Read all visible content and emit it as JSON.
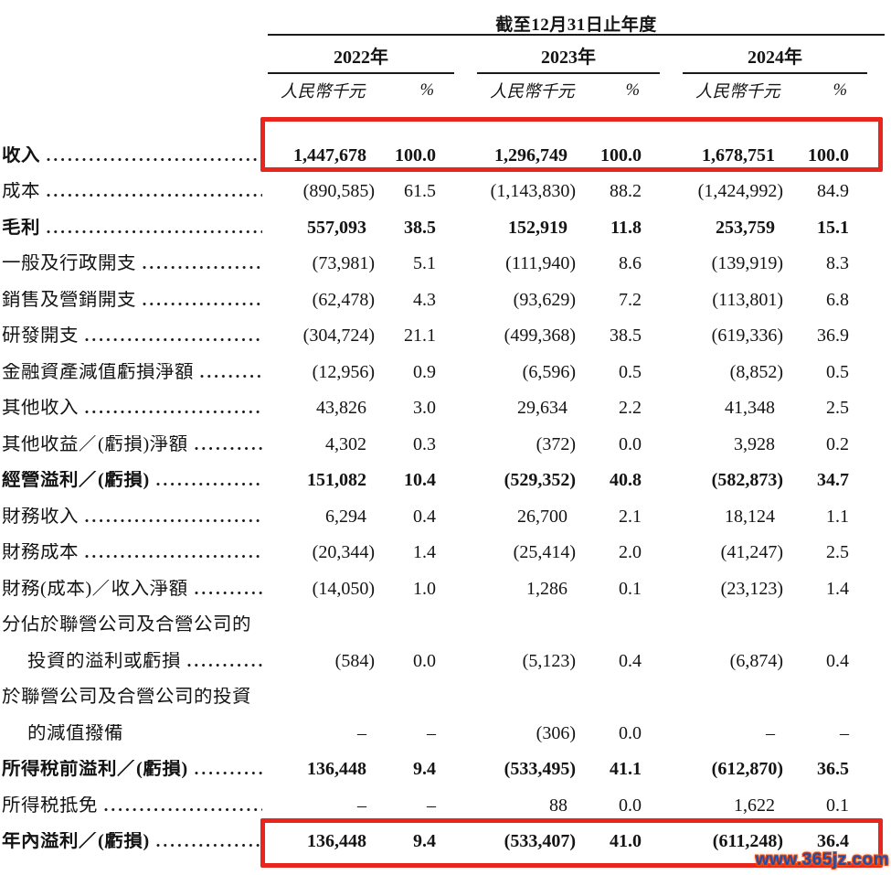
{
  "header": {
    "period_title": "截至12月31日止年度",
    "years": [
      "2022年",
      "2023年",
      "2024年"
    ],
    "unit_label": "人民幣千元",
    "percent_label": "%"
  },
  "rows": [
    {
      "label": "收入",
      "bold": true,
      "leader": true,
      "highlight": true,
      "values": [
        "1,447,678",
        "100.0",
        "1,296,749",
        "100.0",
        "1,678,751",
        "100.0"
      ]
    },
    {
      "label": "成本",
      "bold": false,
      "leader": true,
      "values": [
        "(890,585)",
        "61.5",
        "(1,143,830)",
        "88.2",
        "(1,424,992)",
        "84.9"
      ]
    },
    {
      "label": "毛利",
      "bold": true,
      "leader": true,
      "values": [
        "557,093",
        "38.5",
        "152,919",
        "11.8",
        "253,759",
        "15.1"
      ]
    },
    {
      "label": "一般及行政開支",
      "bold": false,
      "leader": true,
      "values": [
        "(73,981)",
        "5.1",
        "(111,940)",
        "8.6",
        "(139,919)",
        "8.3"
      ]
    },
    {
      "label": "銷售及營銷開支",
      "bold": false,
      "leader": true,
      "values": [
        "(62,478)",
        "4.3",
        "(93,629)",
        "7.2",
        "(113,801)",
        "6.8"
      ]
    },
    {
      "label": "研發開支",
      "bold": false,
      "leader": true,
      "values": [
        "(304,724)",
        "21.1",
        "(499,368)",
        "38.5",
        "(619,336)",
        "36.9"
      ]
    },
    {
      "label": "金融資產減值虧損淨額",
      "bold": false,
      "leader": true,
      "values": [
        "(12,956)",
        "0.9",
        "(6,596)",
        "0.5",
        "(8,852)",
        "0.5"
      ]
    },
    {
      "label": "其他收入",
      "bold": false,
      "leader": true,
      "values": [
        "43,826",
        "3.0",
        "29,634",
        "2.2",
        "41,348",
        "2.5"
      ]
    },
    {
      "label": "其他收益／(虧損)淨額",
      "bold": false,
      "leader": true,
      "values": [
        "4,302",
        "0.3",
        "(372)",
        "0.0",
        "3,928",
        "0.2"
      ]
    },
    {
      "label": "經營溢利／(虧損)",
      "bold": true,
      "leader": true,
      "values": [
        "151,082",
        "10.4",
        "(529,352)",
        "40.8",
        "(582,873)",
        "34.7"
      ]
    },
    {
      "label": "財務收入",
      "bold": false,
      "leader": true,
      "values": [
        "6,294",
        "0.4",
        "26,700",
        "2.1",
        "18,124",
        "1.1"
      ]
    },
    {
      "label": "財務成本",
      "bold": false,
      "leader": true,
      "values": [
        "(20,344)",
        "1.4",
        "(25,414)",
        "2.0",
        "(41,247)",
        "2.5"
      ]
    },
    {
      "label": "財務(成本)／收入淨額",
      "bold": false,
      "leader": true,
      "values": [
        "(14,050)",
        "1.0",
        "1,286",
        "0.1",
        "(23,123)",
        "1.4"
      ]
    },
    {
      "label": "分佔於聯營公司及合營公司的",
      "label2": "投資的溢利或虧損",
      "bold": false,
      "leader": true,
      "values": [
        "(584)",
        "0.0",
        "(5,123)",
        "0.4",
        "(6,874)",
        "0.4"
      ]
    },
    {
      "label": "於聯營公司及合營公司的投資",
      "label2": "的減值撥備",
      "bold": false,
      "leader": false,
      "values": [
        "–",
        "–",
        "(306)",
        "0.0",
        "–",
        "–"
      ]
    },
    {
      "label": "所得稅前溢利／(虧損)",
      "bold": true,
      "leader": true,
      "values": [
        "136,448",
        "9.4",
        "(533,495)",
        "41.1",
        "(612,870)",
        "36.5"
      ]
    },
    {
      "label": "所得税抵免",
      "bold": false,
      "leader": true,
      "values": [
        "–",
        "–",
        "88",
        "0.0",
        "1,622",
        "0.1"
      ]
    },
    {
      "label": "年內溢利／(虧損)",
      "bold": true,
      "leader": true,
      "highlight": true,
      "values": [
        "136,448",
        "9.4",
        "(533,407)",
        "41.0",
        "(611,248)",
        "36.4"
      ]
    }
  ],
  "colors": {
    "highlight_border": "#e8261d",
    "text": "#141414",
    "watermark_blue": "#1d4fa8",
    "watermark_outline": "#f04a10"
  },
  "watermark": "www.365jz.com"
}
